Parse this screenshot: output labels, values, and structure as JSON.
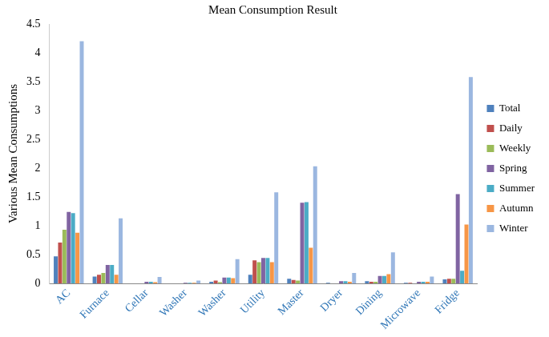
{
  "chart_data": {
    "type": "bar",
    "title": "Mean Consumption Result",
    "y_label": "Various Mean Consumptions",
    "categories": [
      "AC",
      "Furnace",
      "Cellar",
      "Washer",
      "Washer",
      "Utility",
      "Master",
      "Dryer",
      "Dining",
      "Microwave",
      "Fridge"
    ],
    "series": [
      {
        "name": "Total",
        "color": "#4f81bd",
        "values": [
          0.47,
          0.12,
          0,
          0,
          0.03,
          0.15,
          0.08,
          0.01,
          0.04,
          0.01,
          0.07
        ]
      },
      {
        "name": "Daily",
        "color": "#c0504d",
        "values": [
          0.71,
          0.15,
          0,
          0,
          0.05,
          0.4,
          0.06,
          0,
          0.03,
          0.01,
          0.08
        ]
      },
      {
        "name": "Weekly",
        "color": "#9bbb59",
        "values": [
          0.93,
          0.18,
          0,
          0,
          0.02,
          0.37,
          0.05,
          0,
          0.03,
          0,
          0.08
        ]
      },
      {
        "name": "Spring",
        "color": "#8064a2",
        "values": [
          1.24,
          0.32,
          0.03,
          0.01,
          0.1,
          0.44,
          1.4,
          0.04,
          0.13,
          0.03,
          1.55
        ]
      },
      {
        "name": "Summer",
        "color": "#4bacc6",
        "values": [
          1.22,
          0.32,
          0.03,
          0.01,
          0.1,
          0.44,
          1.41,
          0.04,
          0.13,
          0.03,
          0.22
        ]
      },
      {
        "name": "Autumn",
        "color": "#f79646",
        "values": [
          0.88,
          0.15,
          0.02,
          0.01,
          0.09,
          0.37,
          0.62,
          0.03,
          0.16,
          0.03,
          1.02
        ]
      },
      {
        "name": "Winter",
        "color": "#9bb7e0",
        "values": [
          4.2,
          1.13,
          0.11,
          0.05,
          0.42,
          1.58,
          2.03,
          0.18,
          0.54,
          0.12,
          3.58
        ]
      }
    ],
    "ylim": [
      0,
      4.5
    ],
    "yticks": [
      0,
      0.5,
      1,
      1.5,
      2,
      2.5,
      3,
      3.5,
      4,
      4.5
    ],
    "grid": false,
    "legend": "right"
  }
}
